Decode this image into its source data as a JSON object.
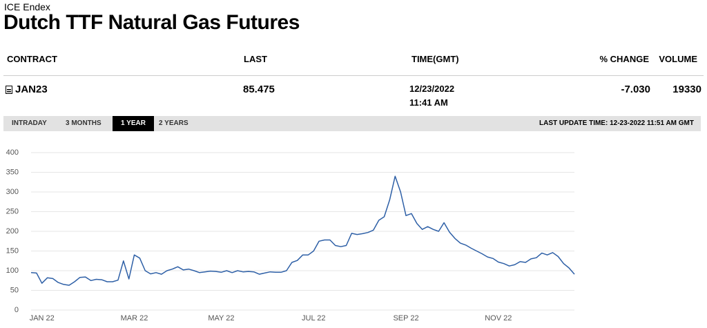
{
  "header": {
    "source": "ICE Endex",
    "title": "Dutch TTF Natural Gas Futures"
  },
  "table": {
    "columns": [
      "CONTRACT",
      "LAST",
      "TIME(GMT)",
      "% CHANGE",
      "VOLUME"
    ],
    "rows": [
      [
        "JAN23",
        "85.475",
        "12/23/2022 11:41 AM",
        "-7.030",
        "19330"
      ]
    ]
  },
  "tabs": {
    "items": [
      "INTRADAY",
      "3 MONTHS",
      "1 YEAR",
      "2 YEARS"
    ],
    "active": 2,
    "last_update": "LAST UPDATE TIME: 12-23-2022 11:51 AM GMT"
  },
  "chart_data": {
    "type": "line",
    "categories": [
      null,
      null,
      "JAN 22",
      null,
      null,
      null,
      null,
      null,
      null,
      null,
      null,
      null,
      null,
      null,
      null,
      null,
      null,
      null,
      null,
      "MAR 22",
      null,
      null,
      null,
      null,
      null,
      null,
      null,
      null,
      null,
      null,
      null,
      null,
      null,
      null,
      null,
      "MAY 22",
      null,
      null,
      null,
      null,
      null,
      null,
      null,
      null,
      null,
      null,
      null,
      null,
      null,
      null,
      null,
      null,
      "JUL 22",
      null,
      null,
      null,
      null,
      null,
      null,
      null,
      null,
      null,
      null,
      null,
      null,
      null,
      null,
      null,
      null,
      "SEP 22",
      null,
      null,
      null,
      null,
      null,
      null,
      null,
      null,
      null,
      null,
      null,
      null,
      null,
      null,
      null,
      null,
      "NOV 22",
      null,
      null,
      null,
      null,
      null,
      null,
      null,
      null,
      null,
      null,
      null,
      null,
      null,
      null
    ],
    "series": [
      {
        "color": "#2d5fa6",
        "values": [
          95,
          94,
          68,
          82,
          80,
          70,
          65,
          63,
          72,
          83,
          84,
          75,
          78,
          77,
          72,
          72,
          76,
          125,
          79,
          140,
          132,
          100,
          92,
          95,
          91,
          100,
          104,
          110,
          102,
          104,
          100,
          95,
          97,
          99,
          98,
          96,
          100,
          95,
          100,
          97,
          98,
          97,
          91,
          94,
          97,
          96,
          96,
          100,
          121,
          126,
          140,
          140,
          150,
          175,
          178,
          178,
          164,
          161,
          164,
          195,
          192,
          194,
          197,
          203,
          228,
          237,
          280,
          340,
          300,
          240,
          245,
          220,
          205,
          212,
          205,
          200,
          222,
          198,
          182,
          170,
          165,
          157,
          150,
          143,
          135,
          131,
          122,
          118,
          112,
          115,
          123,
          121,
          130,
          133,
          145,
          140,
          146,
          136,
          118,
          107,
          91
        ]
      }
    ],
    "ylim": [
      0,
      400
    ],
    "yticks": [
      0,
      50,
      100,
      150,
      200,
      250,
      300,
      350,
      400
    ],
    "grid": true
  }
}
